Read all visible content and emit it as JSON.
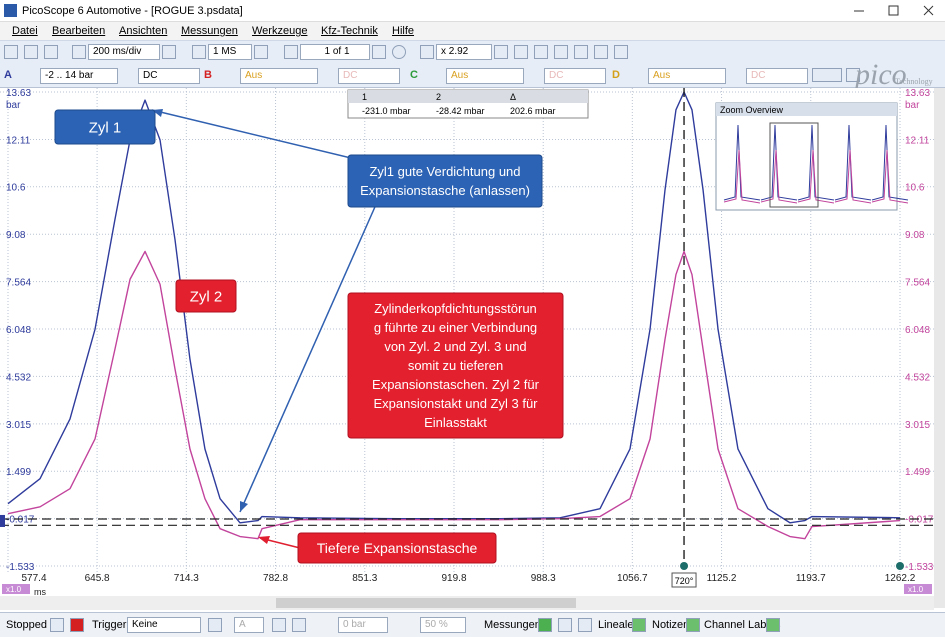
{
  "window": {
    "title": "PicoScope 6 Automotive - [ROGUE 3.psdata]"
  },
  "menu": [
    "Datei",
    "Bearbeiten",
    "Ansichten",
    "Messungen",
    "Werkzeuge",
    "Kfz-Technik",
    "Hilfe"
  ],
  "toolbar": {
    "timebase": "200 ms/div",
    "samples": "1 MS",
    "buffer": "1 of 1",
    "zoom": "x 2.92"
  },
  "channels": [
    {
      "name": "A",
      "range": "-2 .. 14 bar",
      "coupling": "DC"
    },
    {
      "name": "B",
      "range": "Aus",
      "coupling": "DC"
    },
    {
      "name": "C",
      "range": "Aus",
      "coupling": "DC"
    },
    {
      "name": "D",
      "range": "Aus",
      "coupling": "DC"
    }
  ],
  "logo": {
    "name": "pico",
    "sub": "Technology"
  },
  "chart_data": {
    "type": "line",
    "y_unit": "bar",
    "x_unit": "ms",
    "grid": true,
    "xlim": [
      577.4,
      1262.2
    ],
    "ylim": [
      -1.533,
      13.63
    ],
    "xticks": [
      577.4,
      645.8,
      714.3,
      782.8,
      851.3,
      919.8,
      988.3,
      1056.7,
      1125.2,
      1193.7,
      1262.2
    ],
    "yticks": [
      -1.533,
      -0.017,
      1.499,
      3.015,
      4.532,
      6.048,
      7.564,
      9.08,
      10.6,
      12.11,
      13.63
    ],
    "x": [
      577.4,
      602.0,
      625.0,
      644.2,
      659.5,
      671.1,
      682.6,
      694.1,
      705.6,
      717.1,
      728.6,
      740.2,
      755.5,
      769.3,
      772.4,
      801.6,
      878.3,
      955.1,
      1001.2,
      1031.9,
      1054.9,
      1070.3,
      1081.8,
      1090.2,
      1096.4,
      1102.5,
      1111.0,
      1122.5,
      1137.8,
      1160.8,
      1177.7,
      1189.2,
      1194.6,
      1262.2
    ],
    "series": [
      {
        "color": "#2f3c9c",
        "values": [
          0.46,
          1.26,
          3.17,
          6.04,
          9.55,
          12.1,
          13.37,
          12.1,
          8.91,
          5.08,
          2.21,
          0.62,
          -0.15,
          -0.08,
          0.05,
          0.01,
          -0.02,
          -0.02,
          0.01,
          0.3,
          2.21,
          6.04,
          10.5,
          13.06,
          13.63,
          13.06,
          10.5,
          6.04,
          2.21,
          0.3,
          -0.15,
          -0.08,
          0.05,
          0.01
        ]
      },
      {
        "color": "#c2449c",
        "values": [
          0.14,
          0.36,
          0.94,
          2.53,
          5.4,
          7.64,
          8.53,
          7.48,
          4.77,
          2.21,
          0.62,
          -0.34,
          -0.59,
          -0.66,
          -0.34,
          -0.05,
          -0.05,
          -0.05,
          -0.02,
          0.05,
          0.62,
          2.53,
          5.72,
          7.79,
          8.53,
          7.79,
          5.4,
          2.21,
          0.3,
          -0.27,
          -0.59,
          -0.66,
          -0.27,
          -0.08
        ]
      }
    ],
    "rulers": {
      "values": [
        -0.02842,
        -0.231
      ],
      "value_labels": [
        "-28.42 mbar",
        "-231.0 mbar"
      ]
    },
    "cursor": {
      "x": 1096.4,
      "label": "720°"
    },
    "scale_badges": [
      "x1.0",
      "x1.0"
    ]
  },
  "measurements": {
    "headers": [
      "1",
      "2",
      "Δ"
    ],
    "values": [
      "-231.0 mbar",
      "-28.42 mbar",
      "202.6 mbar"
    ]
  },
  "zoom_overview": {
    "title": "Zoom Overview"
  },
  "annotations": [
    {
      "color": "blue",
      "lines": [
        "Zyl 1"
      ]
    },
    {
      "color": "blue",
      "lines": [
        "Zyl1 gute Verdichtung und",
        "Expansionstasche (anlassen)"
      ]
    },
    {
      "color": "red",
      "lines": [
        "Zyl 2"
      ]
    },
    {
      "color": "red",
      "lines": [
        "Zylinderkopfdichtungsstörun",
        "g führte zu einer Verbindung",
        "von Zyl. 2 und Zyl. 3 und",
        "somit zu tieferen",
        "Expansionstaschen. Zyl 2 für",
        "Expansionstakt und Zyl 3 für",
        "Einlasstakt"
      ]
    },
    {
      "color": "red",
      "lines": [
        "Tiefere Expansionstasche"
      ]
    }
  ],
  "status": {
    "state": "Stopped",
    "trigger": "Trigger",
    "trigger_mode": "Keine",
    "trigger_channel": "A",
    "threshold": "0 bar",
    "pretrigger": "50 %",
    "measurements": "Messungen",
    "rulers": "Lineale",
    "notes": "Notizen",
    "channel_labels": "Channel Labels"
  }
}
